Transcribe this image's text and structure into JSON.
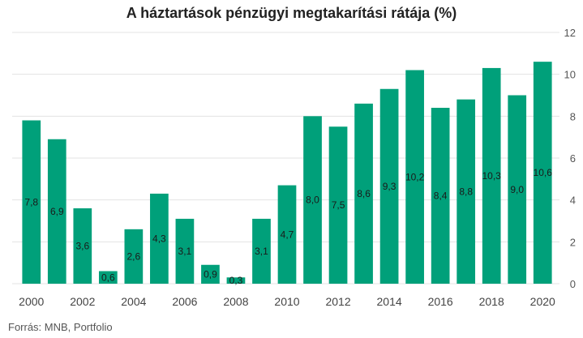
{
  "source": "Forrás: MNB, Portfolio",
  "chart_data": {
    "type": "bar",
    "title": "A háztartások pénzügyi megtakarítási rátája (%)",
    "xlabel": "",
    "ylabel": "",
    "categories": [
      "2000",
      "2001",
      "2002",
      "2003",
      "2004",
      "2005",
      "2006",
      "2007",
      "2008",
      "2009",
      "2010",
      "2011",
      "2012",
      "2013",
      "2014",
      "2015",
      "2016",
      "2017",
      "2018",
      "2019",
      "2020"
    ],
    "values": [
      7.8,
      6.9,
      3.6,
      0.6,
      2.6,
      4.3,
      3.1,
      0.9,
      0.3,
      3.1,
      4.7,
      8.0,
      7.5,
      8.6,
      9.3,
      10.2,
      8.4,
      8.8,
      10.3,
      9.0,
      10.6
    ],
    "data_labels": [
      "7,8",
      "6,9",
      "3,6",
      "0,6",
      "2,6",
      "4,3",
      "3,1",
      "0,9",
      "0,3",
      "3,1",
      "4,7",
      "8,0",
      "7,5",
      "8,6",
      "9,3",
      "10,2",
      "8,4",
      "8,8",
      "10,3",
      "9,0",
      "10,6"
    ],
    "x_tick_labels": [
      "2000",
      "",
      "2002",
      "",
      "2004",
      "",
      "2006",
      "",
      "2008",
      "",
      "2010",
      "",
      "2012",
      "",
      "2014",
      "",
      "2016",
      "",
      "2018",
      "",
      "2020"
    ],
    "ylim": [
      0,
      12
    ],
    "y_ticks": [
      0,
      2,
      4,
      6,
      8,
      10,
      12
    ],
    "y_axis_position": "right",
    "grid": true,
    "bar_color": "#00a07a"
  }
}
